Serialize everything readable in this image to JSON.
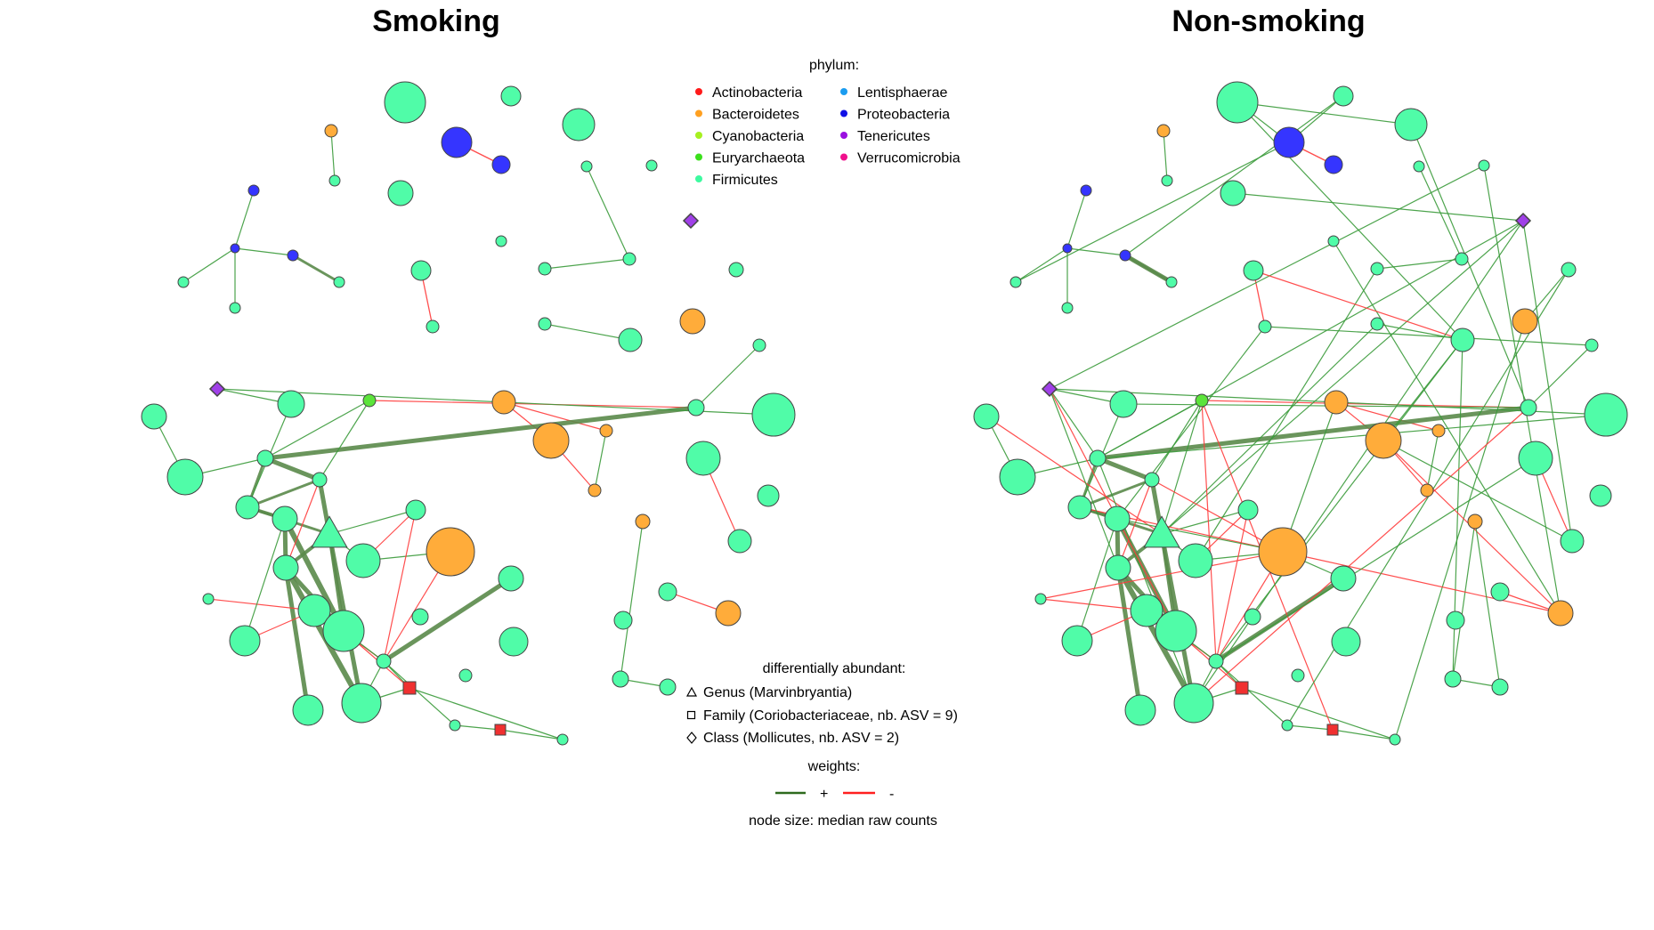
{
  "panels": [
    {
      "title": "Smoking"
    },
    {
      "title": "Non-smoking"
    }
  ],
  "legend": {
    "phylum_title": "phylum:",
    "phyla": [
      {
        "name": "Actinobacteria",
        "color": "#ff1a1a"
      },
      {
        "name": "Bacteroidetes",
        "color": "#ffa020"
      },
      {
        "name": "Cyanobacteria",
        "color": "#a6f020"
      },
      {
        "name": "Euryarchaeota",
        "color": "#3be01c"
      },
      {
        "name": "Firmicutes",
        "color": "#3dfaa0"
      },
      {
        "name": "Lentisphaerae",
        "color": "#1a9cf0"
      },
      {
        "name": "Proteobacteria",
        "color": "#1010e6"
      },
      {
        "name": "Tenericutes",
        "color": "#9a10e0"
      },
      {
        "name": "Verrucomicrobia",
        "color": "#f0108c"
      }
    ],
    "da_title": "differentially abundant:",
    "da_items": [
      {
        "shape": "triangle",
        "label": "Genus (Marvinbryantia)"
      },
      {
        "shape": "square",
        "label": "Family (Coriobacteriaceae, nb. ASV = 9)"
      },
      {
        "shape": "diamond",
        "label": "Class (Mollicutes, nb. ASV = 2)"
      }
    ],
    "weights_title": "weights:",
    "weights": [
      {
        "label": "+",
        "color": "#2e6a1e"
      },
      {
        "label": "-",
        "color": "#ff2020"
      }
    ],
    "node_size_note": "node size: median raw counts"
  },
  "colors": {
    "firmicutes_node": "#50fca8",
    "bacteroidetes_node": "#ffac3a",
    "proteobacteria_node": "#3535ff",
    "tenericutes_node": "#a040e8",
    "euryarchaeota_node": "#5ce43a",
    "actinobacteria_node": "#f03030",
    "positive_edge": "#2e6a1e",
    "negative_edge": "#ff2020"
  }
}
